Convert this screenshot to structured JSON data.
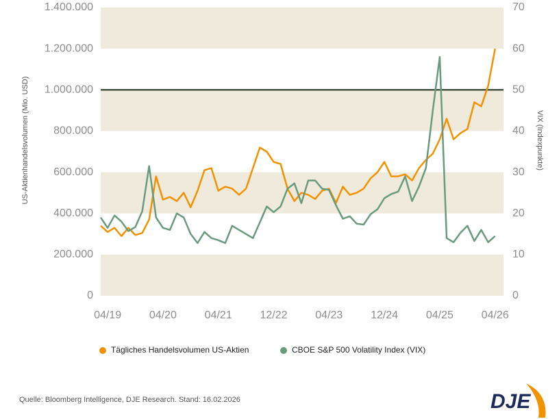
{
  "chart_data": {
    "type": "line",
    "y_label": "US-Aktienhandelsvolumen (Mio. USD)",
    "y2_label": "VIX (Indexpunkte)",
    "source": "Quelle: Bloomberg Intelligence, DJE Research. Stand: 16.02.2026",
    "logo": "DJE",
    "categories": [
      null,
      "04/19",
      null,
      null,
      null,
      null,
      null,
      null,
      null,
      "04/20",
      null,
      null,
      null,
      null,
      null,
      null,
      null,
      "04/21",
      null,
      null,
      null,
      null,
      null,
      null,
      null,
      "12/22",
      null,
      null,
      null,
      null,
      null,
      null,
      null,
      "04/23",
      null,
      null,
      null,
      null,
      null,
      null,
      null,
      "12/24",
      null,
      null,
      null,
      null,
      null,
      null,
      null,
      "04/25",
      null,
      null,
      null,
      null,
      null,
      null,
      null,
      "04/26"
    ],
    "series": [
      {
        "name": "Tägliches Handelsvolumen US-Aktien",
        "color": "#f39200",
        "axis": "y",
        "values": [
          340000,
          310000,
          330000,
          290000,
          330000,
          295000,
          305000,
          370000,
          580000,
          467000,
          480000,
          460000,
          500000,
          430000,
          510000,
          610000,
          620000,
          510000,
          530000,
          520000,
          490000,
          520000,
          620000,
          720000,
          700000,
          650000,
          640000,
          520000,
          460000,
          500000,
          490000,
          470000,
          510000,
          520000,
          450000,
          530000,
          490000,
          500000,
          520000,
          570000,
          600000,
          650000,
          580000,
          580000,
          590000,
          560000,
          620000,
          660000,
          690000,
          760000,
          860000,
          760000,
          790000,
          810000,
          940000,
          920000,
          1020000,
          1200000
        ]
      },
      {
        "name": "CBOE S&P 500 Volatility Index (VIX)",
        "color": "#6a9a7e",
        "axis": "y2",
        "values": [
          19,
          16.5,
          19.5,
          18,
          15.7,
          16.7,
          20.5,
          31.5,
          19,
          16.5,
          16,
          20,
          19,
          15,
          12.8,
          15.5,
          14,
          13.5,
          12.8,
          17,
          16,
          15,
          14,
          17.8,
          21.7,
          20.3,
          21.7,
          26,
          27.3,
          22.5,
          28,
          28,
          26,
          25.7,
          22,
          18.7,
          19.3,
          17.5,
          17.3,
          19.8,
          21,
          23.7,
          24.7,
          25.3,
          29,
          23,
          26.5,
          31,
          45,
          58,
          14,
          13,
          15.3,
          17,
          13.3,
          16,
          13,
          14.5
        ]
      }
    ],
    "ylim": [
      0,
      1400000
    ],
    "yticks": [
      0,
      {
        "value": 200000,
        "label": "200.000"
      },
      {
        "value": 400000,
        "label": "400.000"
      },
      {
        "value": 600000,
        "label": "600.000"
      },
      {
        "value": 800000,
        "label": "800.000"
      },
      {
        "value": 1000000,
        "label": "1.000.000"
      },
      {
        "value": 1200000,
        "label": "1.200.000"
      },
      {
        "value": 1400000,
        "label": "1.400.000"
      }
    ],
    "y2lim": [
      0,
      70
    ],
    "y2ticks": [
      0,
      10,
      20,
      30,
      40,
      50,
      60,
      70
    ],
    "reference_line": 1000000,
    "band_color": "#efeadc"
  }
}
